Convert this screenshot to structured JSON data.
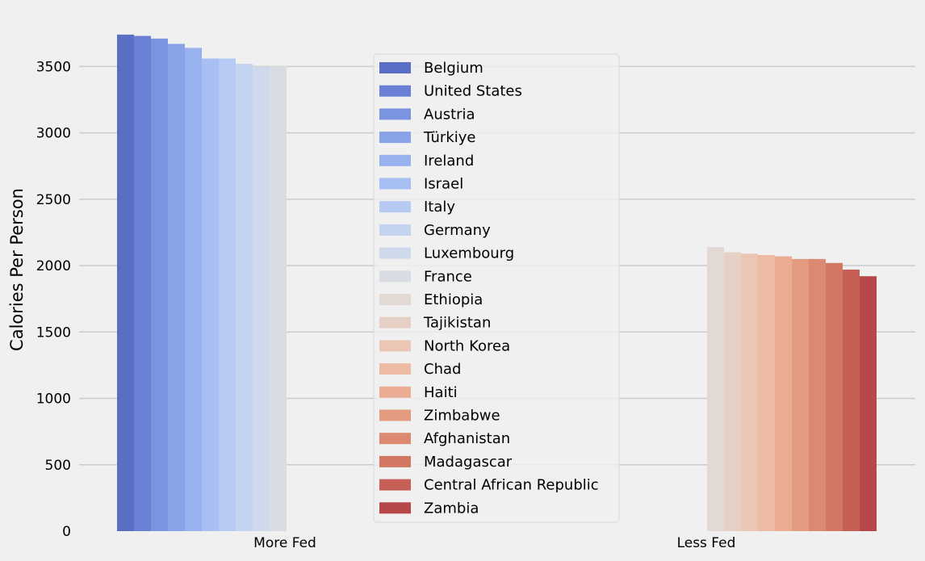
{
  "chart_data": {
    "type": "bar",
    "categories": [
      "More Fed",
      "Less Fed"
    ],
    "ylabel": "Calories Per Person",
    "xlabel": "",
    "ylim": [
      0,
      3800
    ],
    "yticks": [
      0,
      500,
      1000,
      1500,
      2000,
      2500,
      3000,
      3500
    ],
    "grid": "horizontal",
    "legend_position": "center",
    "series": [
      {
        "name": "Belgium",
        "category": "More Fed",
        "value": 3740,
        "color": "#5a6fc4"
      },
      {
        "name": "United States",
        "category": "More Fed",
        "value": 3730,
        "color": "#6a80d4"
      },
      {
        "name": "Austria",
        "category": "More Fed",
        "value": 3710,
        "color": "#7b94df"
      },
      {
        "name": "Türkiye",
        "category": "More Fed",
        "value": 3670,
        "color": "#88a3e8"
      },
      {
        "name": "Ireland",
        "category": "More Fed",
        "value": 3640,
        "color": "#98b2ef"
      },
      {
        "name": "Israel",
        "category": "More Fed",
        "value": 3560,
        "color": "#a7bff3"
      },
      {
        "name": "Italy",
        "category": "More Fed",
        "value": 3560,
        "color": "#b6caf3"
      },
      {
        "name": "Germany",
        "category": "More Fed",
        "value": 3520,
        "color": "#c3d3f0"
      },
      {
        "name": "Luxembourg",
        "category": "More Fed",
        "value": 3500,
        "color": "#cfd9ec"
      },
      {
        "name": "France",
        "category": "More Fed",
        "value": 3500,
        "color": "#d9dce3"
      },
      {
        "name": "Ethiopia",
        "category": "Less Fed",
        "value": 2140,
        "color": "#e2d9d4"
      },
      {
        "name": "Tajikistan",
        "category": "Less Fed",
        "value": 2100,
        "color": "#e6d0c5"
      },
      {
        "name": "North Korea",
        "category": "Less Fed",
        "value": 2090,
        "color": "#ebc6b4"
      },
      {
        "name": "Chad",
        "category": "Less Fed",
        "value": 2080,
        "color": "#edbaa3"
      },
      {
        "name": "Haiti",
        "category": "Less Fed",
        "value": 2070,
        "color": "#eaac93"
      },
      {
        "name": "Zimbabwe",
        "category": "Less Fed",
        "value": 2050,
        "color": "#e49b80"
      },
      {
        "name": "Afghanistan",
        "category": "Less Fed",
        "value": 2050,
        "color": "#db8a71"
      },
      {
        "name": "Madagascar",
        "category": "Less Fed",
        "value": 2020,
        "color": "#d27763"
      },
      {
        "name": "Central African Republic",
        "category": "Less Fed",
        "value": 1970,
        "color": "#c66056"
      },
      {
        "name": "Zambia",
        "category": "Less Fed",
        "value": 1920,
        "color": "#b8474a"
      }
    ]
  }
}
